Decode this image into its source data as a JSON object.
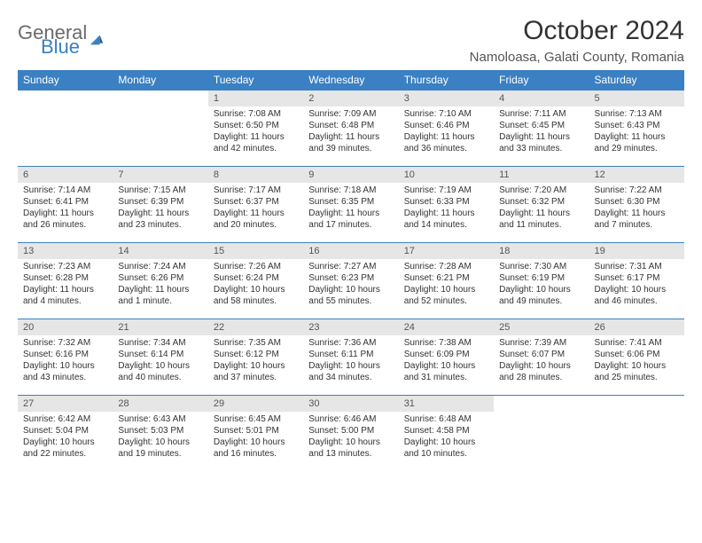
{
  "logo": {
    "text1": "General",
    "text2": "Blue"
  },
  "title": "October 2024",
  "location": "Namoloasa, Galati County, Romania",
  "colors": {
    "header_bg": "#3a80c3",
    "header_text": "#ffffff",
    "daynum_bg": "#e6e6e6",
    "border": "#3a80c3",
    "text": "#333333",
    "logo_gray": "#6a6a6a",
    "logo_blue": "#3a80c3"
  },
  "weekdays": [
    "Sunday",
    "Monday",
    "Tuesday",
    "Wednesday",
    "Thursday",
    "Friday",
    "Saturday"
  ],
  "weeks": [
    [
      null,
      null,
      {
        "n": "1",
        "sr": "Sunrise: 7:08 AM",
        "ss": "Sunset: 6:50 PM",
        "dl": "Daylight: 11 hours and 42 minutes."
      },
      {
        "n": "2",
        "sr": "Sunrise: 7:09 AM",
        "ss": "Sunset: 6:48 PM",
        "dl": "Daylight: 11 hours and 39 minutes."
      },
      {
        "n": "3",
        "sr": "Sunrise: 7:10 AM",
        "ss": "Sunset: 6:46 PM",
        "dl": "Daylight: 11 hours and 36 minutes."
      },
      {
        "n": "4",
        "sr": "Sunrise: 7:11 AM",
        "ss": "Sunset: 6:45 PM",
        "dl": "Daylight: 11 hours and 33 minutes."
      },
      {
        "n": "5",
        "sr": "Sunrise: 7:13 AM",
        "ss": "Sunset: 6:43 PM",
        "dl": "Daylight: 11 hours and 29 minutes."
      }
    ],
    [
      {
        "n": "6",
        "sr": "Sunrise: 7:14 AM",
        "ss": "Sunset: 6:41 PM",
        "dl": "Daylight: 11 hours and 26 minutes."
      },
      {
        "n": "7",
        "sr": "Sunrise: 7:15 AM",
        "ss": "Sunset: 6:39 PM",
        "dl": "Daylight: 11 hours and 23 minutes."
      },
      {
        "n": "8",
        "sr": "Sunrise: 7:17 AM",
        "ss": "Sunset: 6:37 PM",
        "dl": "Daylight: 11 hours and 20 minutes."
      },
      {
        "n": "9",
        "sr": "Sunrise: 7:18 AM",
        "ss": "Sunset: 6:35 PM",
        "dl": "Daylight: 11 hours and 17 minutes."
      },
      {
        "n": "10",
        "sr": "Sunrise: 7:19 AM",
        "ss": "Sunset: 6:33 PM",
        "dl": "Daylight: 11 hours and 14 minutes."
      },
      {
        "n": "11",
        "sr": "Sunrise: 7:20 AM",
        "ss": "Sunset: 6:32 PM",
        "dl": "Daylight: 11 hours and 11 minutes."
      },
      {
        "n": "12",
        "sr": "Sunrise: 7:22 AM",
        "ss": "Sunset: 6:30 PM",
        "dl": "Daylight: 11 hours and 7 minutes."
      }
    ],
    [
      {
        "n": "13",
        "sr": "Sunrise: 7:23 AM",
        "ss": "Sunset: 6:28 PM",
        "dl": "Daylight: 11 hours and 4 minutes."
      },
      {
        "n": "14",
        "sr": "Sunrise: 7:24 AM",
        "ss": "Sunset: 6:26 PM",
        "dl": "Daylight: 11 hours and 1 minute."
      },
      {
        "n": "15",
        "sr": "Sunrise: 7:26 AM",
        "ss": "Sunset: 6:24 PM",
        "dl": "Daylight: 10 hours and 58 minutes."
      },
      {
        "n": "16",
        "sr": "Sunrise: 7:27 AM",
        "ss": "Sunset: 6:23 PM",
        "dl": "Daylight: 10 hours and 55 minutes."
      },
      {
        "n": "17",
        "sr": "Sunrise: 7:28 AM",
        "ss": "Sunset: 6:21 PM",
        "dl": "Daylight: 10 hours and 52 minutes."
      },
      {
        "n": "18",
        "sr": "Sunrise: 7:30 AM",
        "ss": "Sunset: 6:19 PM",
        "dl": "Daylight: 10 hours and 49 minutes."
      },
      {
        "n": "19",
        "sr": "Sunrise: 7:31 AM",
        "ss": "Sunset: 6:17 PM",
        "dl": "Daylight: 10 hours and 46 minutes."
      }
    ],
    [
      {
        "n": "20",
        "sr": "Sunrise: 7:32 AM",
        "ss": "Sunset: 6:16 PM",
        "dl": "Daylight: 10 hours and 43 minutes."
      },
      {
        "n": "21",
        "sr": "Sunrise: 7:34 AM",
        "ss": "Sunset: 6:14 PM",
        "dl": "Daylight: 10 hours and 40 minutes."
      },
      {
        "n": "22",
        "sr": "Sunrise: 7:35 AM",
        "ss": "Sunset: 6:12 PM",
        "dl": "Daylight: 10 hours and 37 minutes."
      },
      {
        "n": "23",
        "sr": "Sunrise: 7:36 AM",
        "ss": "Sunset: 6:11 PM",
        "dl": "Daylight: 10 hours and 34 minutes."
      },
      {
        "n": "24",
        "sr": "Sunrise: 7:38 AM",
        "ss": "Sunset: 6:09 PM",
        "dl": "Daylight: 10 hours and 31 minutes."
      },
      {
        "n": "25",
        "sr": "Sunrise: 7:39 AM",
        "ss": "Sunset: 6:07 PM",
        "dl": "Daylight: 10 hours and 28 minutes."
      },
      {
        "n": "26",
        "sr": "Sunrise: 7:41 AM",
        "ss": "Sunset: 6:06 PM",
        "dl": "Daylight: 10 hours and 25 minutes."
      }
    ],
    [
      {
        "n": "27",
        "sr": "Sunrise: 6:42 AM",
        "ss": "Sunset: 5:04 PM",
        "dl": "Daylight: 10 hours and 22 minutes."
      },
      {
        "n": "28",
        "sr": "Sunrise: 6:43 AM",
        "ss": "Sunset: 5:03 PM",
        "dl": "Daylight: 10 hours and 19 minutes."
      },
      {
        "n": "29",
        "sr": "Sunrise: 6:45 AM",
        "ss": "Sunset: 5:01 PM",
        "dl": "Daylight: 10 hours and 16 minutes."
      },
      {
        "n": "30",
        "sr": "Sunrise: 6:46 AM",
        "ss": "Sunset: 5:00 PM",
        "dl": "Daylight: 10 hours and 13 minutes."
      },
      {
        "n": "31",
        "sr": "Sunrise: 6:48 AM",
        "ss": "Sunset: 4:58 PM",
        "dl": "Daylight: 10 hours and 10 minutes."
      },
      null,
      null
    ]
  ]
}
